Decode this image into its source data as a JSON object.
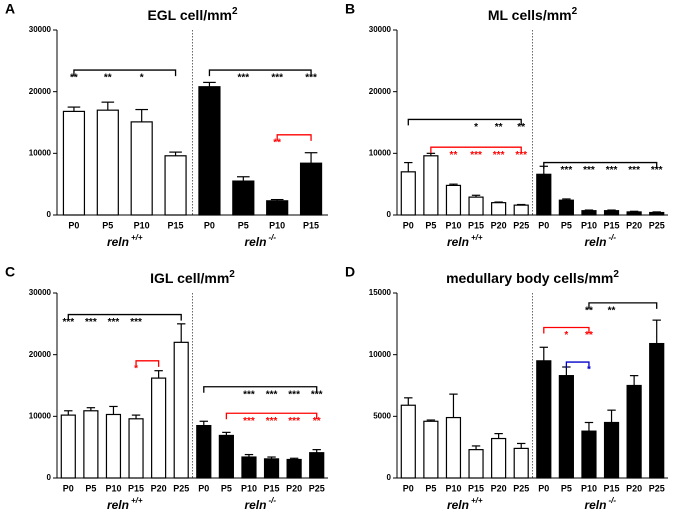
{
  "chart_data": [
    {
      "type": "bar",
      "panel": "A",
      "title": "EGL cell/mm",
      "title_sup": "2",
      "categories": [
        "P0",
        "P5",
        "P10",
        "P15",
        "P0",
        "P5",
        "P10",
        "P15"
      ],
      "values": [
        16800,
        17000,
        15100,
        9600,
        20800,
        5500,
        2300,
        8400
      ],
      "errors": [
        700,
        1300,
        2000,
        600,
        700,
        700,
        200,
        1700
      ],
      "groups": [
        {
          "label": "reln",
          "sup": "+/+",
          "from": 0,
          "to": 3,
          "fill": "#ffffff"
        },
        {
          "label": "reln",
          "sup": "-/-",
          "from": 4,
          "to": 7,
          "fill": "#000000"
        }
      ],
      "ylim": [
        0,
        30000
      ],
      "yticks": [
        0,
        10000,
        20000,
        30000
      ],
      "brackets": [
        {
          "color": "#000000",
          "y": 23500,
          "from": 0,
          "to": 3,
          "stars": [
            {
              "at": 0,
              "text": "**"
            },
            {
              "at": 1,
              "text": "**"
            },
            {
              "at": 2,
              "text": "*"
            }
          ]
        },
        {
          "color": "#000000",
          "y": 23500,
          "from": 4,
          "to": 7,
          "stars": [
            {
              "at": 5,
              "text": "***"
            },
            {
              "at": 6,
              "text": "***"
            },
            {
              "at": 7,
              "text": "***"
            }
          ]
        },
        {
          "color": "#ff0000",
          "y": 13000,
          "from": 6,
          "to": 7,
          "stars": [
            {
              "at": 6,
              "text": "**"
            }
          ]
        }
      ]
    },
    {
      "type": "bar",
      "panel": "B",
      "title": "ML cells/mm",
      "title_sup": "2",
      "categories": [
        "P0",
        "P5",
        "P10",
        "P15",
        "P20",
        "P25",
        "P0",
        "P5",
        "P10",
        "P15",
        "P20",
        "P25"
      ],
      "values": [
        7000,
        9600,
        4800,
        2900,
        2000,
        1600,
        6600,
        2400,
        700,
        700,
        500,
        400
      ],
      "errors": [
        1500,
        400,
        200,
        300,
        100,
        100,
        1300,
        200,
        100,
        100,
        100,
        100
      ],
      "groups": [
        {
          "label": "reln",
          "sup": "+/+",
          "from": 0,
          "to": 5,
          "fill": "#ffffff"
        },
        {
          "label": "reln",
          "sup": "-/-",
          "from": 6,
          "to": 11,
          "fill": "#000000"
        }
      ],
      "ylim": [
        0,
        30000
      ],
      "yticks": [
        0,
        10000,
        20000,
        30000
      ],
      "brackets": [
        {
          "color": "#000000",
          "y": 15500,
          "from": 0,
          "to": 5,
          "stars": [
            {
              "at": 3,
              "text": "*"
            },
            {
              "at": 4,
              "text": "**"
            },
            {
              "at": 5,
              "text": "**"
            }
          ]
        },
        {
          "color": "#ff0000",
          "y": 11000,
          "from": 1,
          "to": 5,
          "stars": [
            {
              "at": 2,
              "text": "**"
            },
            {
              "at": 3,
              "text": "***"
            },
            {
              "at": 4,
              "text": "***"
            },
            {
              "at": 5,
              "text": "***"
            }
          ]
        },
        {
          "color": "#000000",
          "y": 8500,
          "from": 6,
          "to": 11,
          "stars": [
            {
              "at": 7,
              "text": "***"
            },
            {
              "at": 8,
              "text": "***"
            },
            {
              "at": 9,
              "text": "***"
            },
            {
              "at": 10,
              "text": "***"
            },
            {
              "at": 11,
              "text": "***"
            }
          ]
        }
      ]
    },
    {
      "type": "bar",
      "panel": "C",
      "title": "IGL cell/mm",
      "title_sup": "2",
      "categories": [
        "P0",
        "P5",
        "P10",
        "P15",
        "P20",
        "P25",
        "P0",
        "P5",
        "P10",
        "P15",
        "P20",
        "P25"
      ],
      "values": [
        10200,
        10900,
        10300,
        9600,
        16200,
        22000,
        8500,
        6900,
        3400,
        3100,
        3000,
        4100
      ],
      "errors": [
        700,
        500,
        1300,
        600,
        1200,
        3000,
        700,
        500,
        400,
        300,
        200,
        500
      ],
      "groups": [
        {
          "label": "reln",
          "sup": "+/+",
          "from": 0,
          "to": 5,
          "fill": "#ffffff"
        },
        {
          "label": "reln",
          "sup": "-/-",
          "from": 6,
          "to": 11,
          "fill": "#000000"
        }
      ],
      "ylim": [
        0,
        30000
      ],
      "yticks": [
        0,
        10000,
        20000,
        30000
      ],
      "brackets": [
        {
          "color": "#000000",
          "y": 26500,
          "from": 0,
          "to": 5,
          "stars": [
            {
              "at": 0,
              "text": "***"
            },
            {
              "at": 1,
              "text": "***"
            },
            {
              "at": 2,
              "text": "***"
            },
            {
              "at": 3,
              "text": "***"
            }
          ]
        },
        {
          "color": "#ff0000",
          "y": 19000,
          "from": 3,
          "to": 4,
          "stars": [
            {
              "at": 3,
              "text": "*"
            }
          ]
        },
        {
          "color": "#000000",
          "y": 14800,
          "from": 6,
          "to": 11,
          "stars": [
            {
              "at": 8,
              "text": "***"
            },
            {
              "at": 9,
              "text": "***"
            },
            {
              "at": 10,
              "text": "***"
            },
            {
              "at": 11,
              "text": "***"
            }
          ]
        },
        {
          "color": "#ff0000",
          "y": 10500,
          "from": 7,
          "to": 11,
          "stars": [
            {
              "at": 8,
              "text": "***"
            },
            {
              "at": 9,
              "text": "***"
            },
            {
              "at": 10,
              "text": "***"
            },
            {
              "at": 11,
              "text": "**"
            }
          ]
        }
      ]
    },
    {
      "type": "bar",
      "panel": "D",
      "title": "medullary body cells/mm",
      "title_sup": "2",
      "categories": [
        "P0",
        "P5",
        "P10",
        "P15",
        "P20",
        "P25",
        "P0",
        "P5",
        "P10",
        "P15",
        "P20",
        "P25"
      ],
      "values": [
        5900,
        4600,
        4900,
        2300,
        3200,
        2400,
        9500,
        8300,
        3800,
        4500,
        7500,
        10900
      ],
      "errors": [
        600,
        100,
        1900,
        300,
        400,
        400,
        1100,
        700,
        700,
        1000,
        800,
        1900
      ],
      "groups": [
        {
          "label": "reln",
          "sup": "+/+",
          "from": 0,
          "to": 5,
          "fill": "#ffffff"
        },
        {
          "label": "reln",
          "sup": "-/-",
          "from": 6,
          "to": 11,
          "fill": "#000000"
        }
      ],
      "ylim": [
        0,
        15000
      ],
      "yticks": [
        0,
        5000,
        10000,
        15000
      ],
      "brackets": [
        {
          "color": "#000000",
          "y": 14200,
          "from": 8,
          "to": 11,
          "stars": [
            {
              "at": 8,
              "text": "**"
            },
            {
              "at": 9,
              "text": "**"
            }
          ]
        },
        {
          "color": "#ff0000",
          "y": 12200,
          "from": 6,
          "to": 8,
          "stars": [
            {
              "at": 7,
              "text": "*"
            },
            {
              "at": 8,
              "text": "**"
            }
          ]
        },
        {
          "color": "#0000cc",
          "y": 9400,
          "from": 7,
          "to": 8,
          "stars": [
            {
              "at": 8,
              "text": "*"
            }
          ]
        }
      ]
    }
  ]
}
